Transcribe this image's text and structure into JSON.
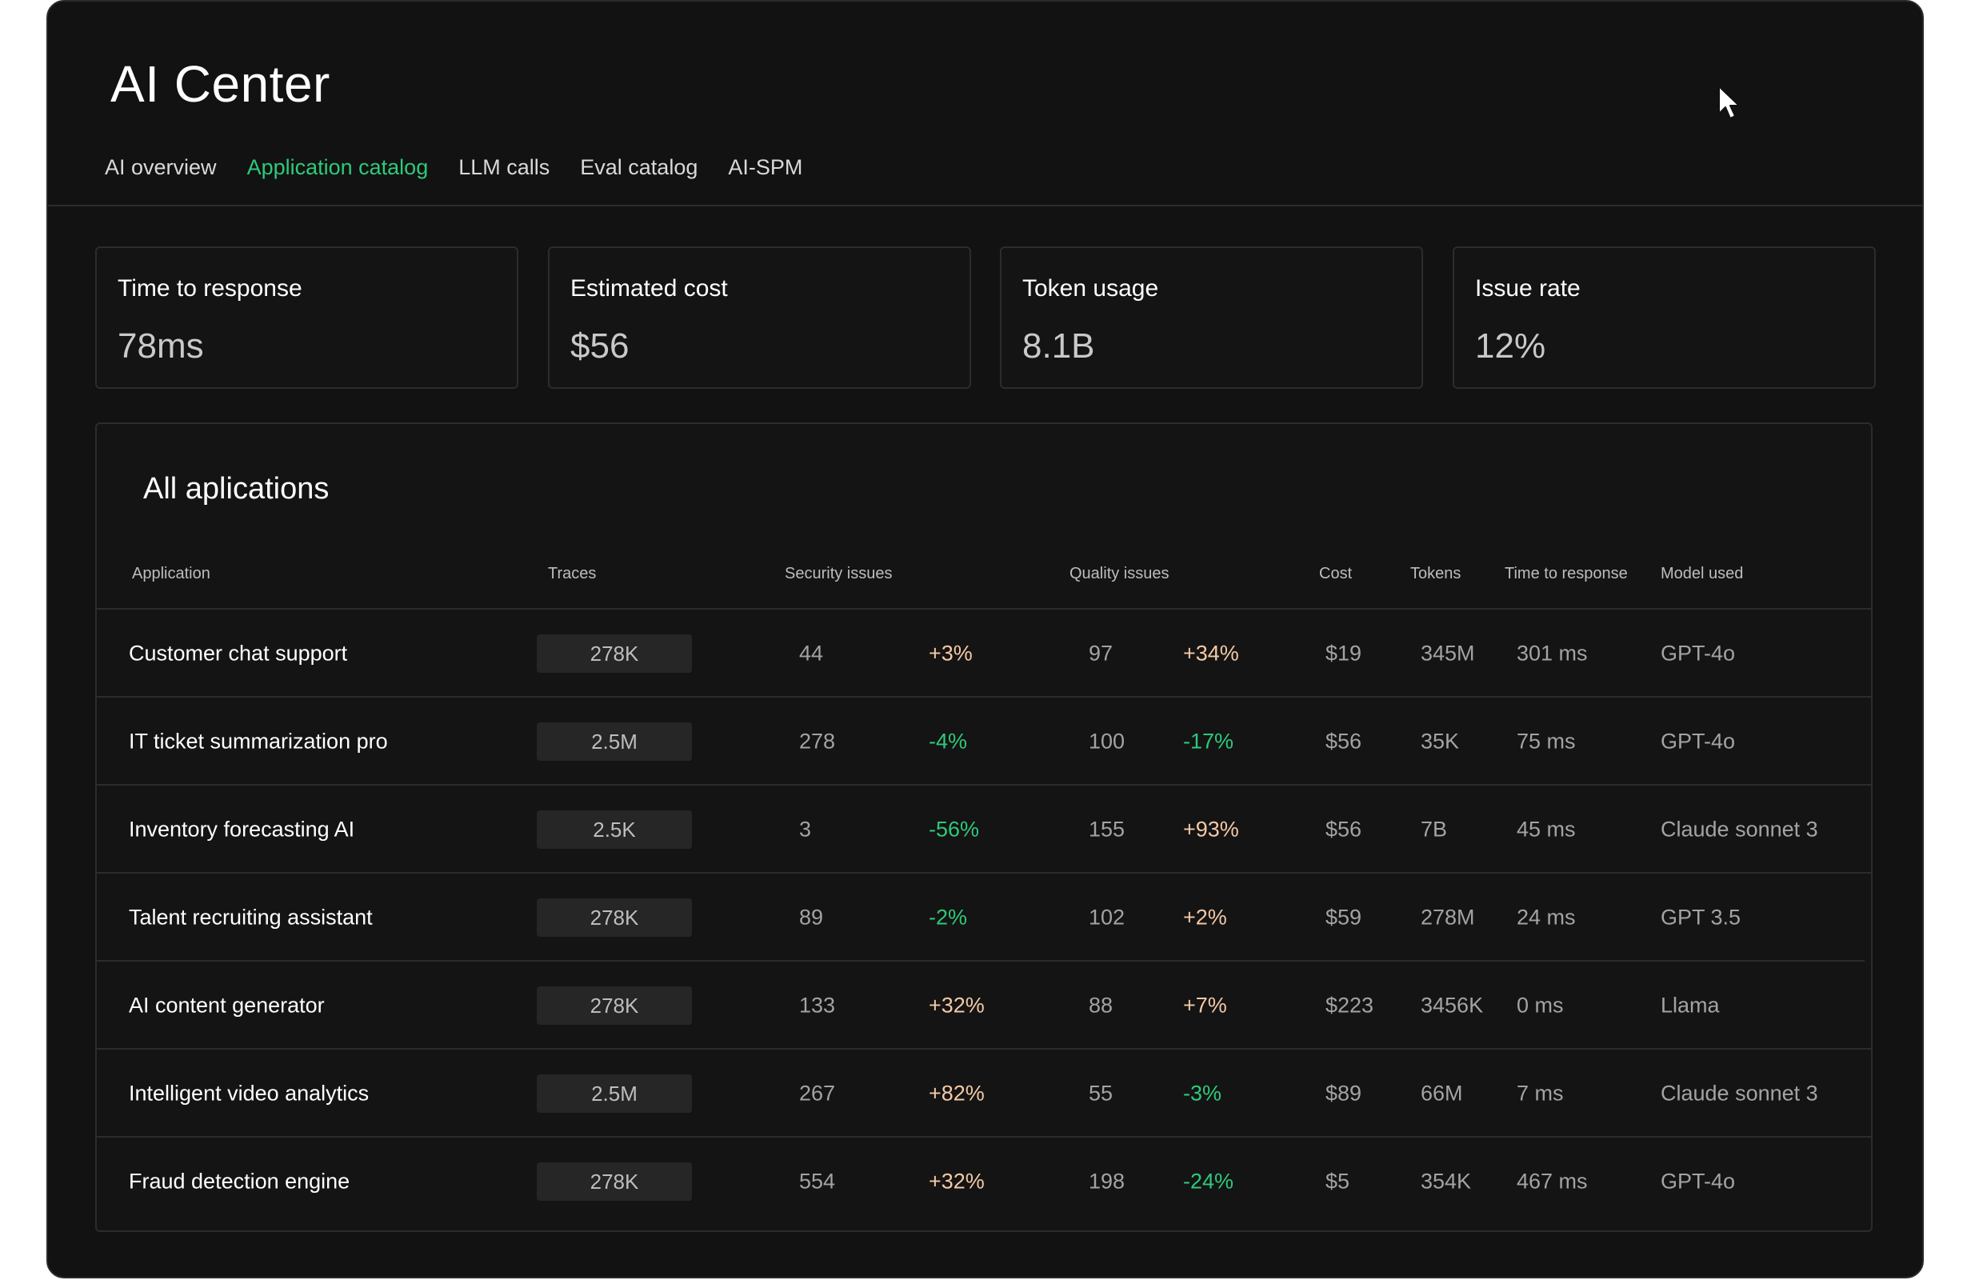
{
  "app": {
    "title": "AI Center"
  },
  "tabs": [
    {
      "label": "AI overview",
      "active": false
    },
    {
      "label": "Application catalog",
      "active": true
    },
    {
      "label": "LLM calls",
      "active": false
    },
    {
      "label": "Eval catalog",
      "active": false
    },
    {
      "label": "AI-SPM",
      "active": false
    }
  ],
  "metrics": [
    {
      "label": "Time to response",
      "value": "78ms"
    },
    {
      "label": "Estimated cost",
      "value": "$56"
    },
    {
      "label": "Token usage",
      "value": "8.1B"
    },
    {
      "label": "Issue rate",
      "value": "12%"
    }
  ],
  "table": {
    "title": "All aplications",
    "columns": {
      "application": "Application",
      "traces": "Traces",
      "security": "Security issues",
      "quality": "Quality issues",
      "cost": "Cost",
      "tokens": "Tokens",
      "ttr": "Time to response",
      "model": "Model used"
    },
    "rows": [
      {
        "app": "Customer chat support",
        "traces": "278K",
        "sec": "44",
        "sec_delta": "+3%",
        "qual": "97",
        "qual_delta": "+34%",
        "cost": "$19",
        "tokens": "345M",
        "ttr": "301 ms",
        "model": "GPT-4o"
      },
      {
        "app": "IT ticket summarization pro",
        "traces": "2.5M",
        "sec": "278",
        "sec_delta": "-4%",
        "qual": "100",
        "qual_delta": "-17%",
        "cost": "$56",
        "tokens": "35K",
        "ttr": "75 ms",
        "model": "GPT-4o"
      },
      {
        "app": "Inventory forecasting AI",
        "traces": "2.5K",
        "sec": "3",
        "sec_delta": "-56%",
        "qual": "155",
        "qual_delta": "+93%",
        "cost": "$56",
        "tokens": "7B",
        "ttr": "45 ms",
        "model": "Claude sonnet 3"
      },
      {
        "app": "Talent recruiting assistant",
        "traces": "278K",
        "sec": "89",
        "sec_delta": "-2%",
        "qual": "102",
        "qual_delta": "+2%",
        "cost": "$59",
        "tokens": "278M",
        "ttr": "24 ms",
        "model": "GPT 3.5"
      },
      {
        "app": "AI content generator",
        "traces": "278K",
        "sec": "133",
        "sec_delta": "+32%",
        "qual": "88",
        "qual_delta": "+7%",
        "cost": "$223",
        "tokens": "3456K",
        "ttr": "0 ms",
        "model": "Llama"
      },
      {
        "app": "Intelligent video analytics",
        "traces": "2.5M",
        "sec": "267",
        "sec_delta": "+82%",
        "qual": "55",
        "qual_delta": "-3%",
        "cost": "$89",
        "tokens": "66M",
        "ttr": "7 ms",
        "model": "Claude sonnet 3"
      },
      {
        "app": "Fraud detection engine",
        "traces": "278K",
        "sec": "554",
        "sec_delta": "+32%",
        "qual": "198",
        "qual_delta": "-24%",
        "cost": "$5",
        "tokens": "354K",
        "ttr": "467 ms",
        "model": "GPT-4o"
      }
    ]
  },
  "colors": {
    "accent": "#2ec97a",
    "positive_delta": "#f4c9a6",
    "negative_delta": "#2ec97a",
    "background": "#121212"
  },
  "icons": {
    "cursor": "mouse-pointer-icon"
  }
}
